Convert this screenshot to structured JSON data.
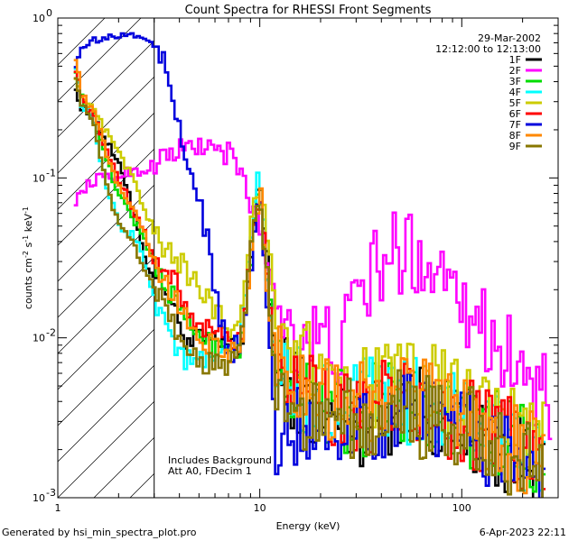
{
  "chart_data": {
    "type": "line",
    "title": "Count Spectra for RHESSI Front Segments",
    "xlabel": "Energy (keV)",
    "ylabel": "counts cm^-2 s^-1 keV^-1",
    "xscale": "log",
    "yscale": "log",
    "xlim": [
      1,
      300
    ],
    "ylim": [
      0.001,
      1
    ],
    "x_ticks": [
      {
        "value": 1,
        "label": "1"
      },
      {
        "value": 10,
        "label": "10"
      },
      {
        "value": 100,
        "label": "100"
      }
    ],
    "y_ticks": [
      {
        "value": 1,
        "label": "10",
        "exp": "0"
      },
      {
        "value": 0.1,
        "label": "10",
        "exp": "-1"
      },
      {
        "value": 0.01,
        "label": "10",
        "exp": "-2"
      },
      {
        "value": 0.001,
        "label": "10",
        "exp": "-3"
      }
    ],
    "date": "29-Mar-2002",
    "time_range": "12:12:00 to 12:13:00",
    "attenuator_boundary_kev": 3,
    "annotations": [
      "Includes Background",
      "Att A0, FDecim 1"
    ],
    "footer_left": "Generated by hsi_min_spectra_plot.pro",
    "footer_right": "6-Apr-2023 22:11",
    "series": [
      {
        "name": "1F",
        "color": "#000000",
        "points": [
          [
            1.2,
            0.42
          ],
          [
            1.3,
            0.27
          ],
          [
            1.5,
            0.24
          ],
          [
            1.7,
            0.18
          ],
          [
            2.0,
            0.12
          ],
          [
            2.2,
            0.09
          ],
          [
            2.5,
            0.05
          ],
          [
            2.7,
            0.03
          ],
          [
            3.0,
            0.025
          ],
          [
            3.5,
            0.02
          ],
          [
            4,
            0.012
          ],
          [
            4.5,
            0.009
          ],
          [
            5,
            0.01
          ],
          [
            6,
            0.009
          ],
          [
            7,
            0.009
          ],
          [
            8,
            0.008
          ],
          [
            9,
            0.03
          ],
          [
            10,
            0.09
          ],
          [
            11,
            0.03
          ],
          [
            12,
            0.006
          ],
          [
            15,
            0.005
          ],
          [
            20,
            0.003
          ],
          [
            30,
            0.003
          ],
          [
            40,
            0.003
          ],
          [
            50,
            0.004
          ],
          [
            60,
            0.004
          ],
          [
            80,
            0.003
          ],
          [
            100,
            0.003
          ],
          [
            150,
            0.002
          ],
          [
            200,
            0.0018
          ],
          [
            260,
            0.0014
          ]
        ]
      },
      {
        "name": "2F",
        "color": "#ff00ff",
        "points": [
          [
            1.2,
            0.07
          ],
          [
            1.4,
            0.09
          ],
          [
            1.6,
            0.1
          ],
          [
            1.9,
            0.1
          ],
          [
            2.2,
            0.11
          ],
          [
            2.7,
            0.11
          ],
          [
            3.1,
            0.13
          ],
          [
            3.6,
            0.14
          ],
          [
            4.2,
            0.15
          ],
          [
            5,
            0.16
          ],
          [
            6,
            0.15
          ],
          [
            7,
            0.14
          ],
          [
            8,
            0.11
          ],
          [
            9,
            0.07
          ],
          [
            10,
            0.05
          ],
          [
            11,
            0.03
          ],
          [
            12,
            0.018
          ],
          [
            15,
            0.011
          ],
          [
            20,
            0.009
          ],
          [
            25,
            0.009
          ],
          [
            28,
            0.012
          ],
          [
            32,
            0.02
          ],
          [
            36,
            0.025
          ],
          [
            42,
            0.03
          ],
          [
            50,
            0.035
          ],
          [
            60,
            0.033
          ],
          [
            70,
            0.03
          ],
          [
            80,
            0.025
          ],
          [
            90,
            0.035
          ],
          [
            100,
            0.02
          ],
          [
            120,
            0.012
          ],
          [
            140,
            0.01
          ],
          [
            160,
            0.009
          ],
          [
            200,
            0.006
          ],
          [
            240,
            0.0045
          ],
          [
            280,
            0.0038
          ]
        ]
      },
      {
        "name": "3F",
        "color": "#00dd00",
        "points": [
          [
            1.2,
            0.55
          ],
          [
            1.3,
            0.32
          ],
          [
            1.5,
            0.25
          ],
          [
            1.7,
            0.14
          ],
          [
            2.0,
            0.08
          ],
          [
            2.3,
            0.06
          ],
          [
            2.6,
            0.045
          ],
          [
            3.0,
            0.03
          ],
          [
            3.5,
            0.02
          ],
          [
            4,
            0.016
          ],
          [
            4.5,
            0.012
          ],
          [
            5,
            0.01
          ],
          [
            6,
            0.009
          ],
          [
            7,
            0.009
          ],
          [
            8,
            0.009
          ],
          [
            9,
            0.03
          ],
          [
            10,
            0.1
          ],
          [
            11,
            0.02
          ],
          [
            12,
            0.007
          ],
          [
            15,
            0.005
          ],
          [
            20,
            0.004
          ],
          [
            30,
            0.003
          ],
          [
            40,
            0.004
          ],
          [
            50,
            0.004
          ],
          [
            70,
            0.004
          ],
          [
            100,
            0.003
          ],
          [
            150,
            0.0025
          ],
          [
            200,
            0.002
          ],
          [
            260,
            0.0016
          ]
        ]
      },
      {
        "name": "4F",
        "color": "#00ffff",
        "points": [
          [
            1.2,
            0.6
          ],
          [
            1.3,
            0.3
          ],
          [
            1.5,
            0.22
          ],
          [
            1.7,
            0.1
          ],
          [
            2.0,
            0.05
          ],
          [
            2.3,
            0.045
          ],
          [
            2.6,
            0.035
          ],
          [
            3.0,
            0.018
          ],
          [
            3.5,
            0.012
          ],
          [
            4,
            0.008
          ],
          [
            4.5,
            0.007
          ],
          [
            5,
            0.007
          ],
          [
            6,
            0.007
          ],
          [
            7,
            0.008
          ],
          [
            8,
            0.01
          ],
          [
            9,
            0.04
          ],
          [
            10,
            0.12
          ],
          [
            11,
            0.02
          ],
          [
            12,
            0.006
          ],
          [
            15,
            0.005
          ],
          [
            20,
            0.004
          ],
          [
            30,
            0.004
          ],
          [
            40,
            0.004
          ],
          [
            50,
            0.004
          ],
          [
            70,
            0.004
          ],
          [
            100,
            0.003
          ],
          [
            150,
            0.0025
          ],
          [
            200,
            0.002
          ],
          [
            260,
            0.0018
          ]
        ]
      },
      {
        "name": "5F",
        "color": "#cccc00",
        "points": [
          [
            1.2,
            0.48
          ],
          [
            1.3,
            0.34
          ],
          [
            1.5,
            0.26
          ],
          [
            1.7,
            0.2
          ],
          [
            2.0,
            0.14
          ],
          [
            2.3,
            0.11
          ],
          [
            2.6,
            0.07
          ],
          [
            3.0,
            0.045
          ],
          [
            3.5,
            0.035
          ],
          [
            4,
            0.03
          ],
          [
            4.5,
            0.025
          ],
          [
            5,
            0.02
          ],
          [
            6,
            0.015
          ],
          [
            7,
            0.012
          ],
          [
            8,
            0.012
          ],
          [
            9,
            0.05
          ],
          [
            10,
            0.1
          ],
          [
            11,
            0.04
          ],
          [
            12,
            0.015
          ],
          [
            15,
            0.008
          ],
          [
            20,
            0.006
          ],
          [
            30,
            0.005
          ],
          [
            40,
            0.005
          ],
          [
            50,
            0.005
          ],
          [
            70,
            0.005
          ],
          [
            100,
            0.004
          ],
          [
            150,
            0.003
          ],
          [
            200,
            0.0025
          ],
          [
            260,
            0.0022
          ]
        ]
      },
      {
        "name": "6F",
        "color": "#ff0000",
        "points": [
          [
            1.2,
            0.55
          ],
          [
            1.3,
            0.33
          ],
          [
            1.5,
            0.24
          ],
          [
            1.7,
            0.16
          ],
          [
            2.0,
            0.1
          ],
          [
            2.3,
            0.07
          ],
          [
            2.6,
            0.05
          ],
          [
            3.0,
            0.03
          ],
          [
            3.5,
            0.025
          ],
          [
            4,
            0.02
          ],
          [
            4.5,
            0.015
          ],
          [
            5,
            0.012
          ],
          [
            6,
            0.01
          ],
          [
            7,
            0.01
          ],
          [
            8,
            0.009
          ],
          [
            9,
            0.03
          ],
          [
            10,
            0.08
          ],
          [
            11,
            0.025
          ],
          [
            12,
            0.007
          ],
          [
            15,
            0.005
          ],
          [
            20,
            0.004
          ],
          [
            30,
            0.003
          ],
          [
            40,
            0.004
          ],
          [
            50,
            0.004
          ],
          [
            70,
            0.003
          ],
          [
            100,
            0.003
          ],
          [
            150,
            0.0025
          ],
          [
            200,
            0.002
          ],
          [
            260,
            0.0016
          ]
        ]
      },
      {
        "name": "7F",
        "color": "#0000dd",
        "points": [
          [
            1.2,
            0.5
          ],
          [
            1.3,
            0.62
          ],
          [
            1.5,
            0.72
          ],
          [
            1.7,
            0.75
          ],
          [
            2.0,
            0.77
          ],
          [
            2.3,
            0.78
          ],
          [
            2.6,
            0.77
          ],
          [
            3.0,
            0.7
          ],
          [
            3.3,
            0.55
          ],
          [
            3.6,
            0.35
          ],
          [
            4,
            0.2
          ],
          [
            4.5,
            0.12
          ],
          [
            5,
            0.07
          ],
          [
            5.5,
            0.04
          ],
          [
            6,
            0.02
          ],
          [
            6.5,
            0.012
          ],
          [
            7,
            0.008
          ],
          [
            8,
            0.009
          ],
          [
            9,
            0.025
          ],
          [
            10,
            0.08
          ],
          [
            11,
            0.015
          ],
          [
            12,
            0.002
          ],
          [
            15,
            0.003
          ],
          [
            20,
            0.003
          ],
          [
            30,
            0.003
          ],
          [
            40,
            0.003
          ],
          [
            50,
            0.004
          ],
          [
            70,
            0.003
          ],
          [
            100,
            0.003
          ],
          [
            150,
            0.002
          ],
          [
            200,
            0.0018
          ],
          [
            260,
            0.0015
          ]
        ]
      },
      {
        "name": "8F",
        "color": "#ff8800",
        "points": [
          [
            1.2,
            0.67
          ],
          [
            1.3,
            0.35
          ],
          [
            1.5,
            0.26
          ],
          [
            1.7,
            0.16
          ],
          [
            2.0,
            0.09
          ],
          [
            2.3,
            0.07
          ],
          [
            2.6,
            0.05
          ],
          [
            3.0,
            0.03
          ],
          [
            3.5,
            0.022
          ],
          [
            4,
            0.016
          ],
          [
            4.5,
            0.012
          ],
          [
            5,
            0.01
          ],
          [
            6,
            0.009
          ],
          [
            7,
            0.008
          ],
          [
            8,
            0.008
          ],
          [
            9,
            0.03
          ],
          [
            10,
            0.09
          ],
          [
            11,
            0.02
          ],
          [
            12,
            0.008
          ],
          [
            15,
            0.005
          ],
          [
            20,
            0.004
          ],
          [
            30,
            0.004
          ],
          [
            40,
            0.004
          ],
          [
            50,
            0.004
          ],
          [
            70,
            0.004
          ],
          [
            100,
            0.003
          ],
          [
            150,
            0.0025
          ],
          [
            200,
            0.002
          ],
          [
            260,
            0.0017
          ]
        ]
      },
      {
        "name": "9F",
        "color": "#887700",
        "points": [
          [
            1.2,
            0.5
          ],
          [
            1.3,
            0.3
          ],
          [
            1.5,
            0.22
          ],
          [
            1.7,
            0.1
          ],
          [
            2.0,
            0.05
          ],
          [
            2.3,
            0.04
          ],
          [
            2.6,
            0.03
          ],
          [
            3.0,
            0.02
          ],
          [
            3.5,
            0.014
          ],
          [
            4,
            0.01
          ],
          [
            4.5,
            0.008
          ],
          [
            5,
            0.007
          ],
          [
            6,
            0.007
          ],
          [
            7,
            0.007
          ],
          [
            8,
            0.008
          ],
          [
            9,
            0.03
          ],
          [
            10,
            0.09
          ],
          [
            11,
            0.02
          ],
          [
            12,
            0.006
          ],
          [
            15,
            0.004
          ],
          [
            20,
            0.003
          ],
          [
            30,
            0.003
          ],
          [
            40,
            0.003
          ],
          [
            50,
            0.004
          ],
          [
            70,
            0.003
          ],
          [
            100,
            0.003
          ],
          [
            150,
            0.002
          ],
          [
            200,
            0.0018
          ],
          [
            260,
            0.0015
          ]
        ]
      }
    ]
  }
}
